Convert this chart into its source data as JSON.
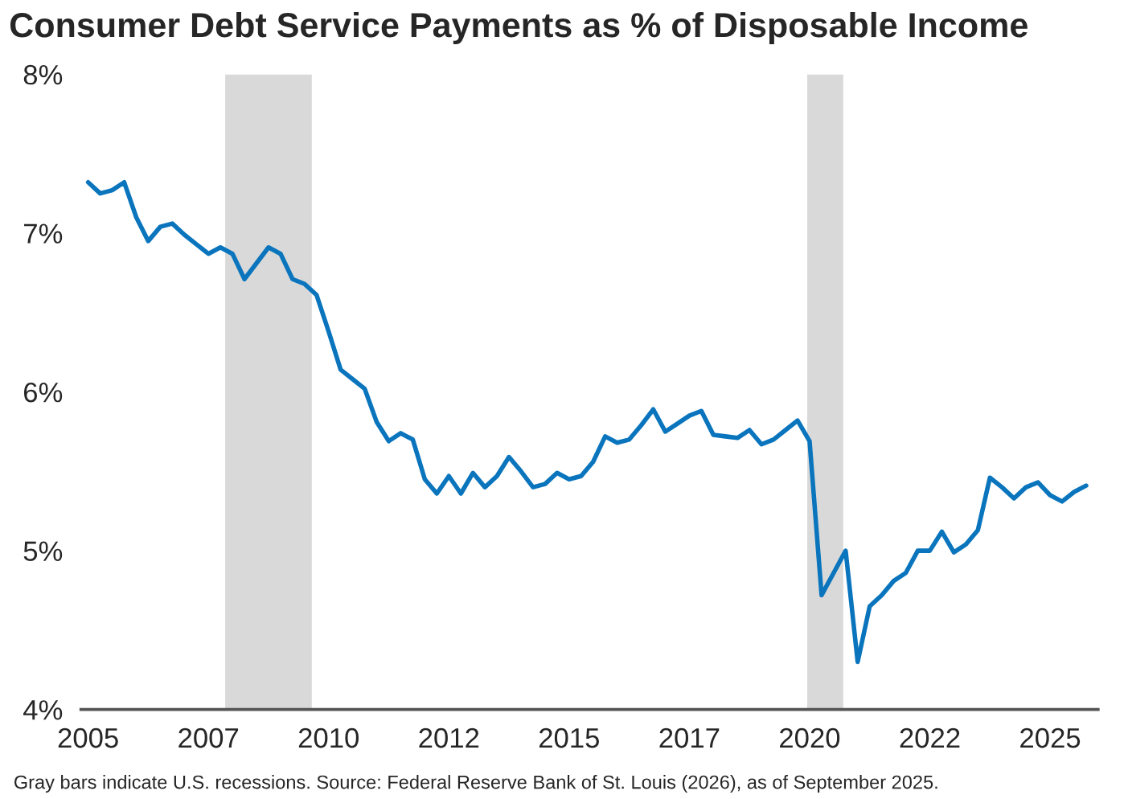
{
  "chart_data": {
    "type": "line",
    "title": "Consumer Debt Service Payments as % of Disposable Income",
    "annotations": [
      "Gray bars indicate U.S. recessions. Source: Federal Reserve Bank of St. Louis (2026), as of September 2025."
    ],
    "x": [
      2005,
      2005.25,
      2005.5,
      2005.75,
      2006,
      2006.25,
      2006.5,
      2006.75,
      2007,
      2007.25,
      2007.5,
      2007.75,
      2008,
      2008.25,
      2008.5,
      2008.75,
      2009,
      2009.25,
      2009.5,
      2009.75,
      2010,
      2010.25,
      2010.5,
      2010.75,
      2011,
      2011.25,
      2011.5,
      2011.75,
      2012,
      2012.25,
      2012.5,
      2012.75,
      2013,
      2013.25,
      2013.5,
      2013.75,
      2014,
      2014.25,
      2014.5,
      2014.75,
      2015,
      2015.25,
      2015.5,
      2015.75,
      2016,
      2016.25,
      2016.5,
      2016.75,
      2017,
      2017.25,
      2017.5,
      2017.75,
      2018,
      2018.25,
      2018.5,
      2018.75,
      2019,
      2019.25,
      2019.5,
      2019.75,
      2020,
      2020.25,
      2020.5,
      2020.75,
      2021,
      2021.25,
      2021.5,
      2021.75,
      2022,
      2022.25,
      2022.5,
      2022.75,
      2023,
      2023.25,
      2023.5,
      2023.75,
      2024,
      2024.25,
      2024.5,
      2024.75,
      2025,
      2025.25,
      2025.5,
      2025.75
    ],
    "series": [
      {
        "color": "#0a75bd",
        "values": [
          7.32,
          7.25,
          7.27,
          7.32,
          7.1,
          6.95,
          7.04,
          7.06,
          6.99,
          6.93,
          6.87,
          6.91,
          6.87,
          6.71,
          6.81,
          6.91,
          6.87,
          6.71,
          6.68,
          6.61,
          6.38,
          6.14,
          6.08,
          6.02,
          5.81,
          5.69,
          5.74,
          5.7,
          5.45,
          5.36,
          5.47,
          5.36,
          5.49,
          5.4,
          5.47,
          5.59,
          5.5,
          5.4,
          5.42,
          5.49,
          5.45,
          5.47,
          5.56,
          5.72,
          5.68,
          5.7,
          5.79,
          5.89,
          5.75,
          5.8,
          5.85,
          5.88,
          5.73,
          5.72,
          5.71,
          5.76,
          5.67,
          5.7,
          5.76,
          5.82,
          5.69,
          4.72,
          4.86,
          5.0,
          4.3,
          4.65,
          4.72,
          4.81,
          4.86,
          5.0,
          5.0,
          5.12,
          4.99,
          5.04,
          5.13,
          5.46,
          5.4,
          5.33,
          5.4,
          5.43,
          5.35,
          5.31,
          5.37,
          5.41
        ]
      }
    ],
    "bands": [
      {
        "axis": "x",
        "from": 2007.85,
        "to": 2009.65,
        "color": "#d9d9d9"
      },
      {
        "axis": "x",
        "from": 2019.95,
        "to": 2020.7,
        "color": "#d9d9d9"
      }
    ],
    "xlim": [
      2004.85,
      2026
    ],
    "xticks": [
      2005,
      {
        "value": 2007.5,
        "label": "2007"
      },
      2010,
      {
        "value": 2012.5,
        "label": "2012"
      },
      2015,
      {
        "value": 2017.5,
        "label": "2017"
      },
      2020,
      {
        "value": 2022.5,
        "label": "2022"
      },
      2025
    ],
    "ylim": [
      4,
      8
    ],
    "yticks": [
      {
        "value": 4,
        "label": "4%"
      },
      {
        "value": 5,
        "label": "5%"
      },
      {
        "value": 6,
        "label": "6%"
      },
      {
        "value": 7,
        "label": "7%"
      },
      {
        "value": 8,
        "label": "8%"
      }
    ],
    "grid": false,
    "legend": false,
    "marker": "none",
    "line_style": "solid"
  }
}
